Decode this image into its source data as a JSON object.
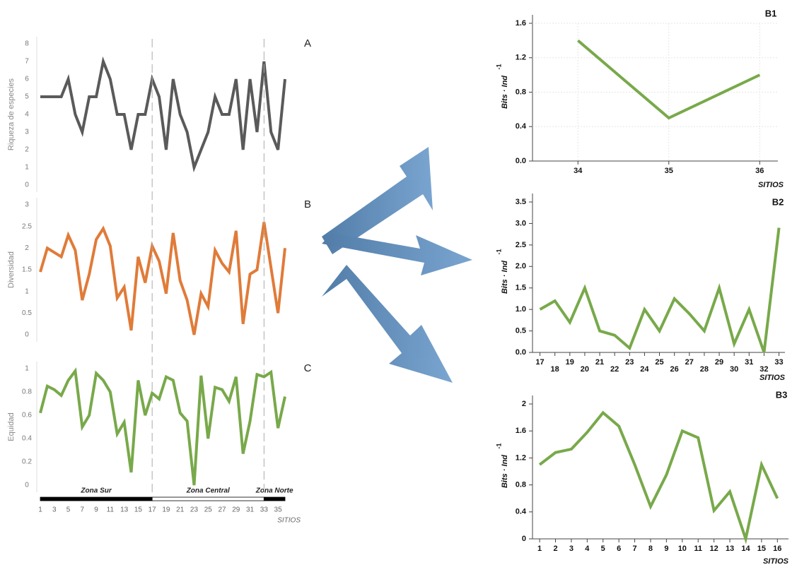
{
  "chart_data": [
    {
      "type": "line",
      "title": "A",
      "ylabel": "Riqueza de especies",
      "color": "#5a5a5a",
      "x": [
        1,
        2,
        3,
        4,
        5,
        6,
        7,
        8,
        9,
        10,
        11,
        12,
        13,
        14,
        15,
        16,
        17,
        18,
        19,
        20,
        21,
        22,
        23,
        24,
        25,
        26,
        27,
        28,
        29,
        30,
        31,
        32,
        33,
        34,
        35,
        36
      ],
      "values": [
        5,
        5,
        5,
        5,
        6,
        4,
        3,
        5,
        5,
        7,
        6,
        4,
        4,
        2,
        4,
        4,
        6,
        5,
        2,
        6,
        4,
        3,
        1,
        2,
        3,
        5,
        4,
        4,
        6,
        2,
        6,
        3,
        7,
        3,
        2,
        6
      ],
      "xlim": [
        1,
        36
      ],
      "ylim": [
        0,
        8
      ],
      "yticks": [
        0,
        1,
        2,
        3,
        4,
        5,
        6,
        7,
        8
      ]
    },
    {
      "type": "line",
      "title": "B",
      "ylabel": "Diversidad",
      "color": "#e07b39",
      "x": [
        1,
        2,
        3,
        4,
        5,
        6,
        7,
        8,
        9,
        10,
        11,
        12,
        13,
        14,
        15,
        16,
        17,
        18,
        19,
        20,
        21,
        22,
        23,
        24,
        25,
        26,
        27,
        28,
        29,
        30,
        31,
        32,
        33,
        34,
        35,
        36
      ],
      "values": [
        1.45,
        2.0,
        1.9,
        1.8,
        2.3,
        1.95,
        0.8,
        1.4,
        2.2,
        2.45,
        2.05,
        0.85,
        1.1,
        0.1,
        1.8,
        1.2,
        2.05,
        1.7,
        0.95,
        2.35,
        1.25,
        0.8,
        0.0,
        0.95,
        0.65,
        1.95,
        1.65,
        1.45,
        2.4,
        0.25,
        1.4,
        1.5,
        2.6,
        1.55,
        0.5,
        2.0
      ],
      "xlim": [
        1,
        36
      ],
      "ylim": [
        0,
        3
      ],
      "yticks": [
        0,
        0.5,
        1,
        1.5,
        2,
        2.5,
        3
      ]
    },
    {
      "type": "line",
      "title": "C",
      "ylabel": "Equidad",
      "xlabel": "SITIOS",
      "color": "#78a94a",
      "x": [
        1,
        2,
        3,
        4,
        5,
        6,
        7,
        8,
        9,
        10,
        11,
        12,
        13,
        14,
        15,
        16,
        17,
        18,
        19,
        20,
        21,
        22,
        23,
        24,
        25,
        26,
        27,
        28,
        29,
        30,
        31,
        32,
        33,
        34,
        35,
        36
      ],
      "values": [
        0.62,
        0.85,
        0.82,
        0.77,
        0.9,
        0.98,
        0.5,
        0.6,
        0.96,
        0.9,
        0.8,
        0.44,
        0.54,
        0.11,
        0.9,
        0.6,
        0.79,
        0.74,
        0.93,
        0.9,
        0.62,
        0.55,
        0.0,
        0.94,
        0.4,
        0.84,
        0.82,
        0.72,
        0.93,
        0.27,
        0.55,
        0.95,
        0.93,
        0.97,
        0.49,
        0.76
      ],
      "xlim": [
        1,
        36
      ],
      "ylim": [
        0,
        1
      ],
      "yticks": [
        0,
        0.2,
        0.4,
        0.6,
        0.8,
        1
      ],
      "xticks": [
        1,
        3,
        5,
        7,
        9,
        11,
        13,
        15,
        17,
        19,
        21,
        23,
        25,
        27,
        29,
        31,
        33,
        35
      ],
      "zones": [
        {
          "name": "Zona Sur",
          "start": 1,
          "end": 17,
          "color": "#000000"
        },
        {
          "name": "Zona Central",
          "start": 17,
          "end": 33,
          "color": "#ffffff"
        },
        {
          "name": "Zona Norte",
          "start": 33,
          "end": 36,
          "color": "#000000"
        }
      ]
    },
    {
      "type": "line",
      "title": "B1",
      "ylabel": "Bits · Ind",
      "ylabel_sup": "-1",
      "xlabel": "SITIOS",
      "color": "#78a94a",
      "grid": true,
      "x": [
        34,
        35,
        36
      ],
      "values": [
        1.4,
        0.5,
        1.0
      ],
      "xlim": [
        33.5,
        36.2
      ],
      "xticks": [
        34,
        35,
        36
      ],
      "ylim": [
        0,
        1.6
      ],
      "yticks": [
        {
          "value": 0,
          "label": "0.0"
        },
        0.4,
        0.8,
        1.2,
        1.6
      ]
    },
    {
      "type": "line",
      "title": "B2",
      "ylabel": "Bits · Ind",
      "ylabel_sup": "-1",
      "xlabel": "SITIOS",
      "color": "#78a94a",
      "grid": false,
      "x": [
        17,
        18,
        19,
        20,
        21,
        22,
        23,
        24,
        25,
        26,
        27,
        28,
        29,
        30,
        31,
        32,
        33
      ],
      "values": [
        1.0,
        1.2,
        0.7,
        1.5,
        0.5,
        0.4,
        0.1,
        1.0,
        0.5,
        1.25,
        0.9,
        0.5,
        1.5,
        0.2,
        1.0,
        0.0,
        2.9
      ],
      "xlim": [
        16.5,
        33.4
      ],
      "xticks": [
        17,
        18,
        19,
        20,
        21,
        22,
        23,
        24,
        25,
        26,
        27,
        28,
        29,
        30,
        31,
        32,
        33
      ],
      "ylim": [
        0,
        3.5
      ],
      "yticks": [
        {
          "value": 0,
          "label": "0.0"
        },
        0.5,
        {
          "value": 1,
          "label": "1.0"
        },
        1.5,
        {
          "value": 2,
          "label": "2.0"
        },
        2.5,
        {
          "value": 3,
          "label": "3.0"
        },
        3.5
      ]
    },
    {
      "type": "line",
      "title": "B3",
      "ylabel": "Bits · Ind",
      "ylabel_sup": "-1",
      "xlabel": "SITIOS",
      "color": "#78a94a",
      "grid": false,
      "x": [
        1,
        2,
        3,
        4,
        5,
        6,
        7,
        8,
        9,
        10,
        11,
        12,
        13,
        14,
        15,
        16
      ],
      "values": [
        1.1,
        1.28,
        1.33,
        1.58,
        1.87,
        1.67,
        1.1,
        0.48,
        0.95,
        1.6,
        1.5,
        0.42,
        0.7,
        0.0,
        1.1,
        0.6
      ],
      "xlim": [
        0.55,
        16.7
      ],
      "xticks": [
        1,
        2,
        3,
        4,
        5,
        6,
        7,
        8,
        9,
        10,
        11,
        12,
        13,
        14,
        15,
        16
      ],
      "ylim": [
        0,
        2
      ],
      "yticks": [
        0,
        0.4,
        0.8,
        1.2,
        1.6,
        2
      ]
    }
  ]
}
